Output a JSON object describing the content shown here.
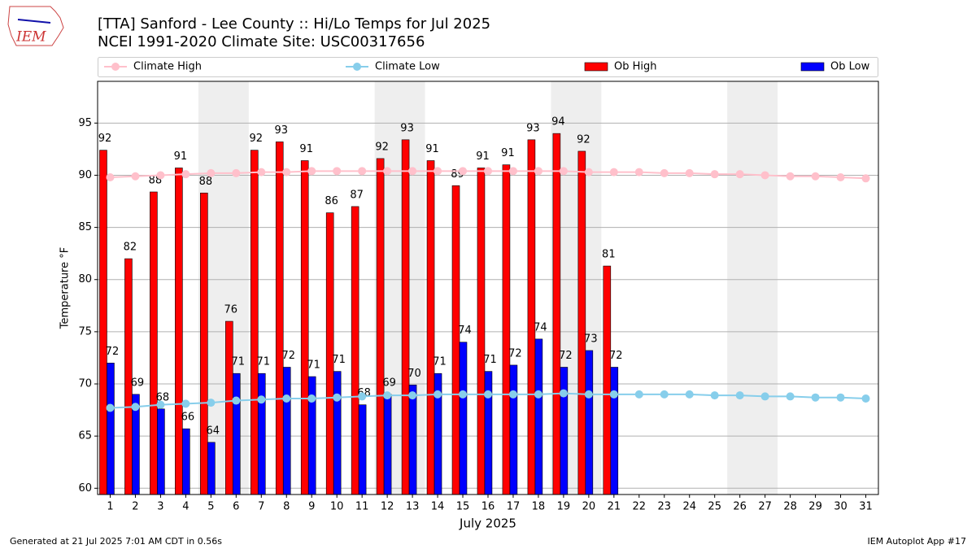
{
  "logo_text": "IEM",
  "footer_left": "Generated at 21 Jul 2025 7:01 AM CDT in 0.56s",
  "footer_right": "IEM Autoplot App #17",
  "chart_data": {
    "type": "bar",
    "title": "[TTA] Sanford - Lee County :: Hi/Lo Temps for Jul 2025",
    "subtitle": "NCEI 1991-2020 Climate Site: USC00317656",
    "xlabel": "July 2025",
    "ylabel": "Temperature °F",
    "x": [
      1,
      2,
      3,
      4,
      5,
      6,
      7,
      8,
      9,
      10,
      11,
      12,
      13,
      14,
      15,
      16,
      17,
      18,
      19,
      20,
      21,
      22,
      23,
      24,
      25,
      26,
      27,
      28,
      29,
      30,
      31
    ],
    "xlim": [
      0.5,
      31.5
    ],
    "xticks": [
      1,
      2,
      3,
      4,
      5,
      6,
      7,
      8,
      9,
      10,
      11,
      12,
      13,
      14,
      15,
      16,
      17,
      18,
      19,
      20,
      21,
      22,
      23,
      24,
      25,
      26,
      27,
      28,
      29,
      30,
      31
    ],
    "ylim": [
      59.4,
      99
    ],
    "yticks": [
      60,
      65,
      70,
      75,
      80,
      85,
      90,
      95
    ],
    "grid": true,
    "shaded_days": [
      [
        5,
        6
      ],
      [
        12,
        13
      ],
      [
        19,
        20
      ],
      [
        26,
        27
      ]
    ],
    "series": [
      {
        "name": "Climate High",
        "kind": "line",
        "color": "#ffc0cb",
        "values": [
          89.8,
          89.9,
          90.0,
          90.1,
          90.2,
          90.2,
          90.3,
          90.3,
          90.4,
          90.4,
          90.4,
          90.4,
          90.4,
          90.4,
          90.4,
          90.4,
          90.4,
          90.4,
          90.4,
          90.3,
          90.3,
          90.3,
          90.2,
          90.2,
          90.1,
          90.1,
          90.0,
          89.9,
          89.9,
          89.8,
          89.7
        ]
      },
      {
        "name": "Climate Low",
        "kind": "line",
        "color": "#87ceeb",
        "values": [
          67.7,
          67.8,
          68.0,
          68.1,
          68.2,
          68.4,
          68.5,
          68.6,
          68.6,
          68.7,
          68.8,
          68.9,
          68.9,
          69.0,
          69.0,
          69.0,
          69.0,
          69.0,
          69.1,
          69.0,
          69.0,
          69.0,
          69.0,
          69.0,
          68.9,
          68.9,
          68.8,
          68.8,
          68.7,
          68.7,
          68.6
        ]
      },
      {
        "name": "Ob High",
        "kind": "bar",
        "color": "#ff0000",
        "values": [
          92.4,
          82.0,
          88.4,
          90.7,
          88.3,
          76.0,
          92.4,
          93.2,
          91.4,
          86.4,
          87.0,
          91.6,
          93.4,
          91.4,
          89.0,
          90.7,
          91.0,
          93.4,
          94.0,
          92.3,
          81.3,
          null,
          null,
          null,
          null,
          null,
          null,
          null,
          null,
          null,
          null
        ],
        "value_labels": [
          "92",
          "82",
          "88",
          "91",
          "88",
          "76",
          "92",
          "93",
          "91",
          "86",
          "87",
          "92",
          "93",
          "91",
          "89",
          "91",
          "91",
          "93",
          "94",
          "92",
          "81",
          null,
          null,
          null,
          null,
          null,
          null,
          null,
          null,
          null,
          null
        ]
      },
      {
        "name": "Ob Low",
        "kind": "bar",
        "color": "#0000ff",
        "values": [
          72.0,
          69.0,
          67.6,
          65.7,
          64.4,
          71.0,
          71.0,
          71.6,
          70.7,
          71.2,
          68.0,
          69.0,
          69.9,
          71.0,
          74.0,
          71.2,
          71.8,
          74.3,
          71.6,
          73.2,
          71.6,
          null,
          null,
          null,
          null,
          null,
          null,
          null,
          null,
          null,
          null
        ],
        "value_labels": [
          "72",
          "69",
          "68",
          "66",
          "64",
          "71",
          "71",
          "72",
          "71",
          "71",
          "68",
          "69",
          "70",
          "71",
          "74",
          "71",
          "72",
          "74",
          "72",
          "73",
          "72",
          null,
          null,
          null,
          null,
          null,
          null,
          null,
          null,
          null,
          null
        ]
      }
    ]
  }
}
